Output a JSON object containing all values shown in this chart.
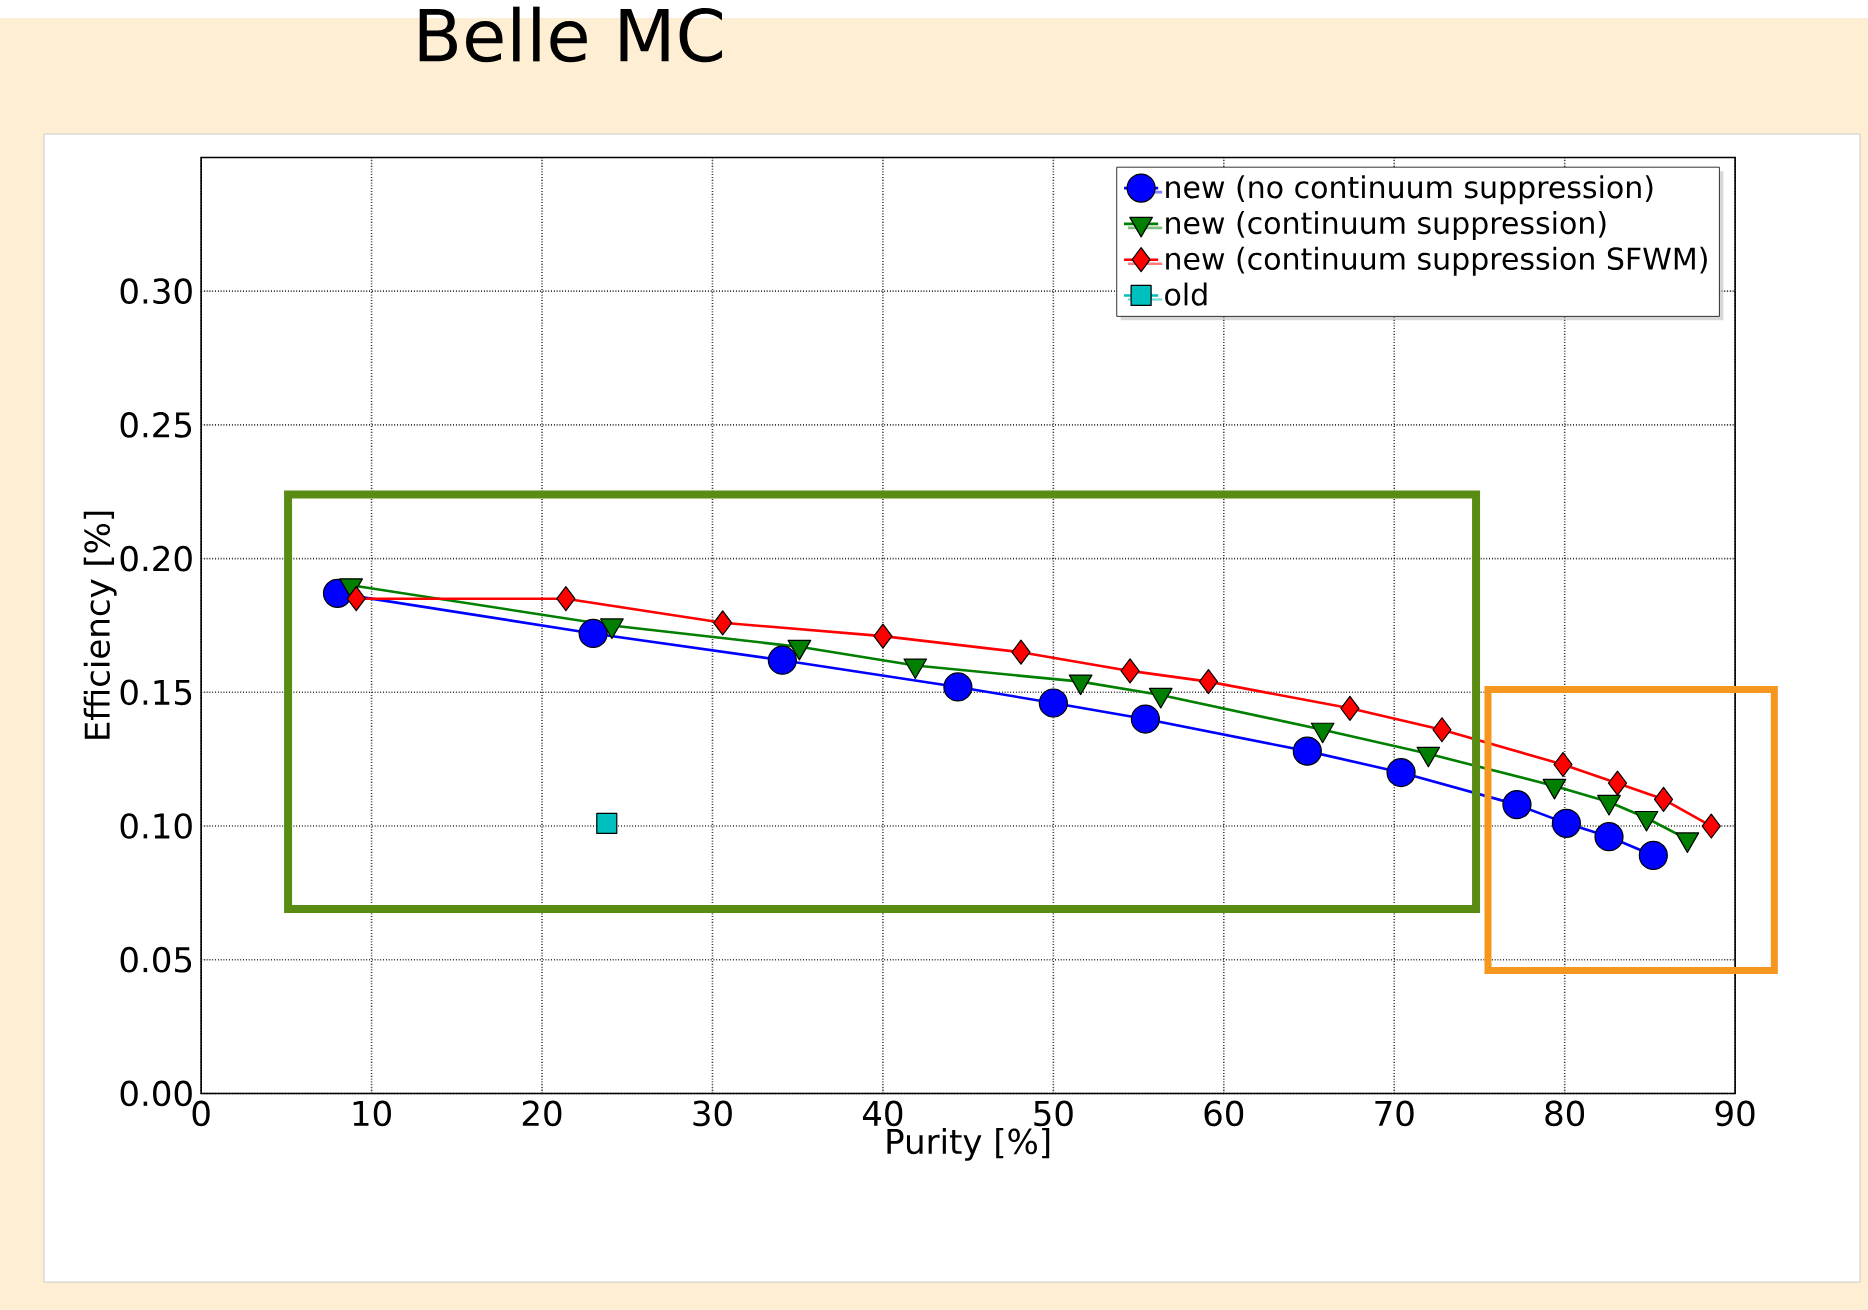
{
  "chart_data": {
    "type": "line",
    "title": "Belle MC",
    "xlabel": "Purity [%]",
    "ylabel": "Efficiency [%]",
    "xlim": [
      0,
      90
    ],
    "xticks": [
      0,
      10,
      20,
      30,
      40,
      50,
      60,
      70,
      80,
      90
    ],
    "ylim": [
      0,
      0.35
    ],
    "yticks": [
      {
        "value": 0,
        "label": "0.00"
      },
      {
        "value": 0.05,
        "label": "0.05"
      },
      {
        "value": 0.1,
        "label": "0.10"
      },
      {
        "value": 0.15,
        "label": "0.15"
      },
      {
        "value": 0.2,
        "label": "0.20"
      },
      {
        "value": 0.25,
        "label": "0.25"
      },
      {
        "value": 0.3,
        "label": "0.30"
      }
    ],
    "grid": true,
    "legend": "top right",
    "line_style": "solid",
    "series": [
      {
        "name": "new (no continuum suppression)",
        "color": "#0000ff",
        "marker": "circle",
        "x": [
          8.0,
          23.0,
          34.1,
          44.4,
          50.0,
          55.4,
          64.9,
          70.4,
          77.2,
          80.1,
          82.6,
          85.2
        ],
        "values": [
          0.187,
          0.172,
          0.162,
          0.152,
          0.146,
          0.14,
          0.128,
          0.12,
          0.108,
          0.101,
          0.096,
          0.089
        ]
      },
      {
        "name": "new (continuum suppression)",
        "color": "#007f00",
        "marker": "triangle",
        "x": [
          8.8,
          24.1,
          35.1,
          41.9,
          51.6,
          56.3,
          65.8,
          72.0,
          79.4,
          82.6,
          84.8,
          87.2
        ],
        "values": [
          0.19,
          0.175,
          0.167,
          0.16,
          0.154,
          0.149,
          0.136,
          0.127,
          0.115,
          0.109,
          0.103,
          0.095
        ]
      },
      {
        "name": "new (continuum suppression SFWM)",
        "color": "#ff0000",
        "marker": "diamond",
        "x": [
          9.1,
          21.4,
          30.6,
          40.0,
          48.1,
          54.5,
          59.1,
          67.4,
          72.8,
          79.9,
          83.1,
          85.8,
          88.6
        ],
        "values": [
          0.185,
          0.185,
          0.176,
          0.171,
          0.165,
          0.158,
          0.154,
          0.144,
          0.136,
          0.123,
          0.116,
          0.11,
          0.1
        ]
      },
      {
        "name": "old",
        "color": "#00bfbf",
        "marker": "square",
        "x": [
          23.8
        ],
        "values": [
          0.101
        ]
      }
    ]
  }
}
